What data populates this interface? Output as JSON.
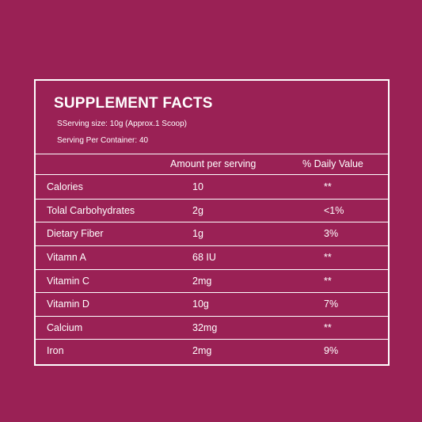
{
  "facts": {
    "title": "SUPPLEMENT FACTS",
    "serving_size": "SServing size: 10g (Approx.1 Scoop)",
    "servings_per_container": "Serving Per Container: 40",
    "columns": {
      "amount": "Amount per serving",
      "daily_value": "% Daily Value"
    },
    "rows": [
      {
        "name": "Calories",
        "amount": "10",
        "dv": "**"
      },
      {
        "name": "Tolal Carbohydrates",
        "amount": "2g",
        "dv": "<1%"
      },
      {
        "name": "Dietary Fiber",
        "amount": "1g",
        "dv": "3%"
      },
      {
        "name": "Vitamn A",
        "amount": "68 IU",
        "dv": "**"
      },
      {
        "name": "Vitamin C",
        "amount": "2mg",
        "dv": "**"
      },
      {
        "name": "Vitamin D",
        "amount": "10g",
        "dv": "7%"
      },
      {
        "name": "Calcium",
        "amount": "32mg",
        "dv": "**"
      },
      {
        "name": "Iron",
        "amount": "2mg",
        "dv": "9%"
      }
    ]
  },
  "colors": {
    "background": "#9a2155",
    "text": "#ffffff"
  }
}
